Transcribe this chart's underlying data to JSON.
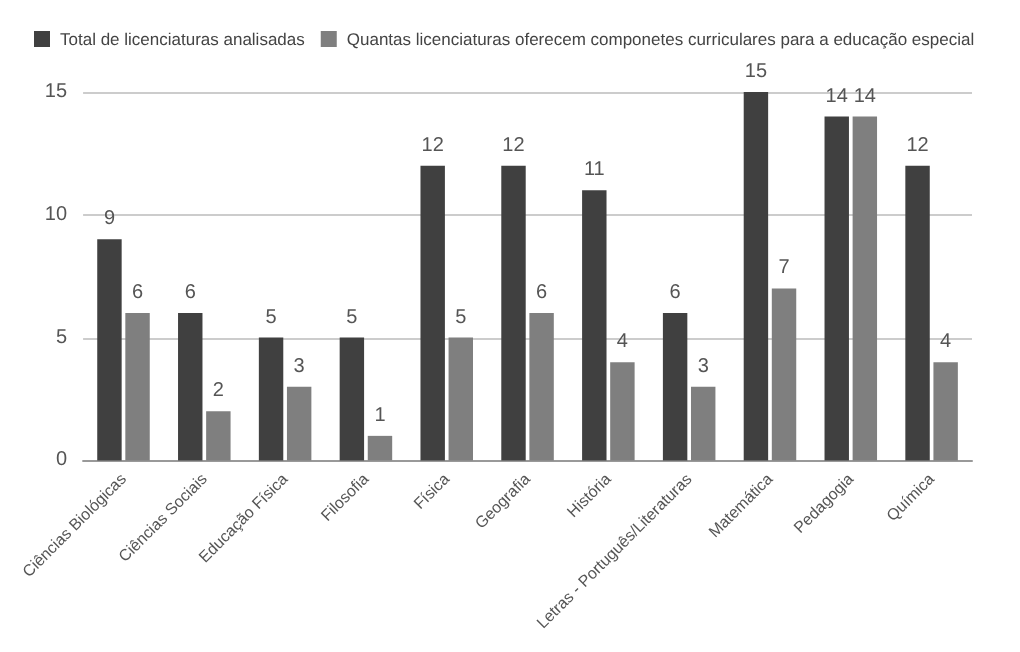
{
  "chart_data": {
    "type": "bar",
    "categories": [
      "Ciências Biológicas",
      "Ciências Sociais",
      "Educação Física",
      "Filosofia",
      "Física",
      "Geografia",
      "História",
      "Letras - Português/Literaturas",
      "Matemática",
      "Pedagogia",
      "Química"
    ],
    "series": [
      {
        "name": "Total de licenciaturas analisadas",
        "color": "#404040",
        "values": [
          9,
          6,
          5,
          5,
          12,
          12,
          11,
          6,
          15,
          14,
          12
        ]
      },
      {
        "name": "Quantas licenciaturas oferecem componetes curriculares para a educação especial",
        "color": "#7f7f7f",
        "values": [
          6,
          2,
          3,
          1,
          5,
          6,
          4,
          3,
          7,
          14,
          4
        ]
      }
    ],
    "ylim": [
      0,
      15
    ],
    "yticks": [
      0,
      5,
      10,
      15
    ],
    "grid": "y",
    "legend": "top left",
    "data_labels": true
  }
}
